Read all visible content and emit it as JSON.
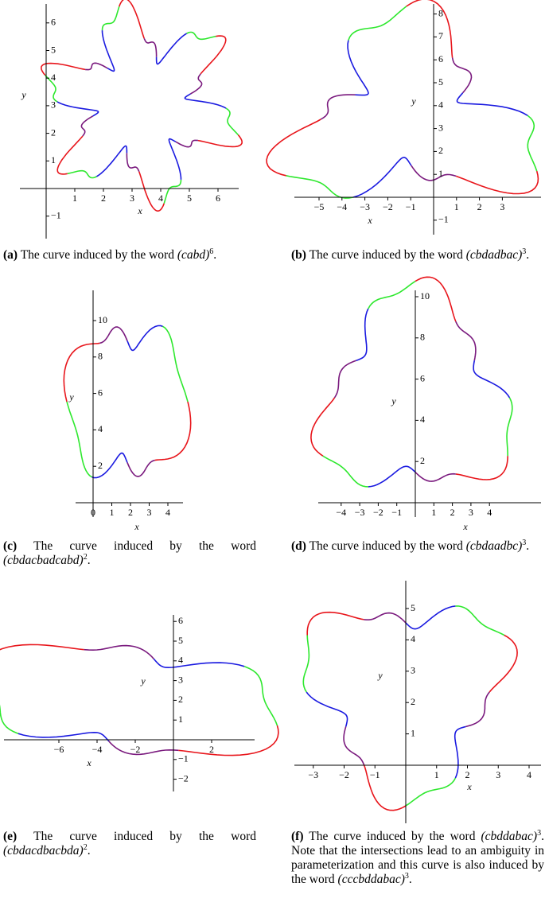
{
  "panels": [
    {
      "caption": {
        "label": "(a)",
        "text": "The curve induced by the word",
        "word": "(cabd)",
        "power": "6",
        "end": "."
      },
      "xlabel": "x",
      "ylabel": "y",
      "xticks": [
        1,
        2,
        3,
        4,
        5,
        6
      ],
      "yticks": [
        {
          "value": -1,
          "label": "−1"
        },
        1,
        2,
        3,
        4,
        5,
        6
      ]
    },
    {
      "caption": {
        "label": "(b)",
        "text": "The curve induced by the word",
        "word": "(cbdadbac)",
        "power": "3",
        "end": "."
      },
      "xlabel": "x",
      "ylabel": "y",
      "xticks": [
        {
          "value": -5,
          "label": "−5"
        },
        {
          "value": -4,
          "label": "−4"
        },
        {
          "value": -3,
          "label": "−3"
        },
        {
          "value": -2,
          "label": "−2"
        },
        {
          "value": -1,
          "label": "−1"
        },
        1,
        2,
        3
      ],
      "yticks": [
        {
          "value": -1,
          "label": "−1"
        },
        1,
        2,
        3,
        4,
        5,
        6,
        7,
        8
      ]
    },
    {
      "caption": {
        "label": "(c)",
        "text": "The curve induced by the word",
        "word": "(cbdacbadcabd)",
        "power": "2",
        "end": "."
      },
      "xlabel": "x",
      "ylabel": "y",
      "xticks": [
        0,
        1,
        2,
        3,
        4
      ],
      "yticks": [
        2,
        4,
        6,
        8,
        10
      ]
    },
    {
      "caption": {
        "label": "(d)",
        "text": "The curve induced by the word",
        "word": "(cbdaadbc)",
        "power": "3",
        "end": "."
      },
      "xlabel": "x",
      "ylabel": "y",
      "xticks": [
        {
          "value": -4,
          "label": "−4"
        },
        {
          "value": -3,
          "label": "−3"
        },
        {
          "value": -2,
          "label": "−2"
        },
        {
          "value": -1,
          "label": "−1"
        },
        1,
        2,
        3,
        4
      ],
      "yticks": [
        2,
        4,
        6,
        8,
        10
      ]
    },
    {
      "caption": {
        "label": "(e)",
        "text": "The curve induced by the word",
        "word": "(cbdacdbacbda)",
        "power": "2",
        "end": "."
      },
      "xlabel": "x",
      "ylabel": "y",
      "xticks": [
        {
          "value": -6,
          "label": "−6"
        },
        {
          "value": -4,
          "label": "−4"
        },
        {
          "value": -2,
          "label": "−2"
        },
        2
      ],
      "yticks": [
        {
          "value": -2,
          "label": "−2"
        },
        {
          "value": -1,
          "label": "−1"
        },
        1,
        2,
        3,
        4,
        5,
        6
      ]
    },
    {
      "caption": {
        "label": "(f)",
        "text": "The curve induced by the word",
        "word": "(cbddabac)",
        "power": "3",
        "end": ". Note that the intersections lead to an ambiguity in parameterization and this curve is also induced by the word",
        "word2": "(cccbddabac)",
        "power2": "3",
        "end2": "."
      },
      "xlabel": "x",
      "ylabel": "y",
      "xticks": [
        {
          "value": -3,
          "label": "−3"
        },
        {
          "value": -2,
          "label": "−2"
        },
        {
          "value": -1,
          "label": "−1"
        },
        1,
        2,
        3,
        4
      ],
      "yticks": [
        1,
        2,
        3,
        4,
        5
      ]
    }
  ]
}
